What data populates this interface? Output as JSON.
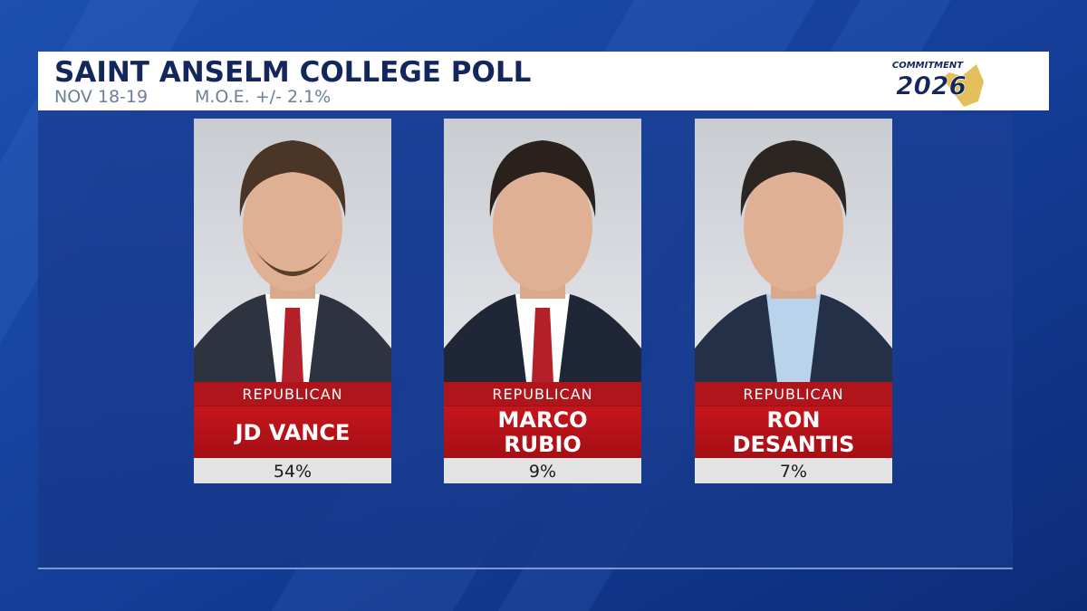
{
  "header": {
    "title": "SAINT ANSELM COLLEGE POLL",
    "dates": "NOV 18-19",
    "margin_of_error": "M.O.E. +/- 2.1%",
    "logo_top": "COMMITMENT",
    "logo_year": "2026"
  },
  "candidates": [
    {
      "party": "REPUBLICAN",
      "name_lines": [
        "JD VANCE"
      ],
      "result": "54%"
    },
    {
      "party": "REPUBLICAN",
      "name_lines": [
        "MARCO",
        "RUBIO"
      ],
      "result": "9%"
    },
    {
      "party": "REPUBLICAN",
      "name_lines": [
        "RON",
        "DESANTIS"
      ],
      "result": "7%"
    }
  ]
}
